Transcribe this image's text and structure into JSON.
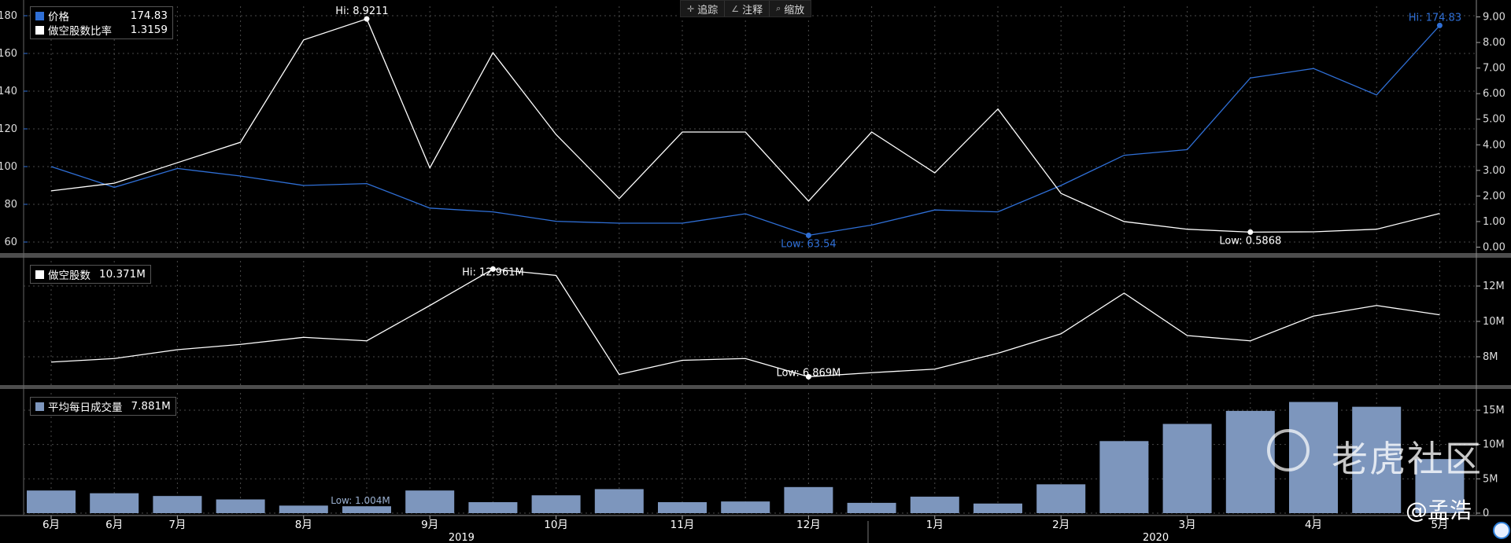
{
  "toolbar": {
    "track": "追踪",
    "annotate": "注释",
    "zoom": "缩放",
    "track_icon": "crosshair-icon",
    "annotate_icon": "pencil-icon",
    "zoom_icon": "magnifier-icon"
  },
  "legends": {
    "price": {
      "label": "价格",
      "value": "174.83",
      "color": "#2f6fd6"
    },
    "ratio": {
      "label": "做空股数比率",
      "value": "1.3159",
      "color": "#ffffff"
    },
    "short": {
      "label": "做空股数",
      "value": "10.371M",
      "color": "#ffffff"
    },
    "volume": {
      "label": "平均每日成交量",
      "value": "7.881M",
      "color": "#7d96bd"
    }
  },
  "watermark": {
    "brand": "老虎社区",
    "user": "@孟浩"
  },
  "chart_data": [
    {
      "type": "line",
      "panel": "price",
      "x": [
        "2019-06-14",
        "2019-06-28",
        "2019-07-15",
        "2019-07-31",
        "2019-08-15",
        "2019-08-30",
        "2019-09-13",
        "2019-09-30",
        "2019-10-15",
        "2019-10-31",
        "2019-11-15",
        "2019-11-29",
        "2019-12-13",
        "2019-12-31",
        "2020-01-15",
        "2020-01-31",
        "2020-02-14",
        "2020-02-28",
        "2020-03-13",
        "2020-03-31",
        "2020-04-15",
        "2020-04-30",
        "2020-05-15"
      ],
      "series": [
        {
          "name": "价格",
          "axis": "left",
          "color": "#2f6fd6",
          "values": [
            100,
            89,
            99,
            95,
            90,
            91,
            78,
            76,
            71,
            70,
            70,
            75,
            63.54,
            69,
            77,
            76,
            90,
            106,
            109,
            147,
            152,
            138,
            174.83
          ]
        },
        {
          "name": "做空股数比率",
          "axis": "right",
          "color": "#ffffff",
          "values": [
            2.2,
            2.5,
            3.3,
            4.1,
            8.1,
            8.9211,
            3.1,
            7.6,
            4.4,
            1.9,
            4.5,
            4.5,
            1.8,
            4.5,
            2.9,
            5.4,
            2.1,
            1.0,
            0.7,
            0.5868,
            0.6,
            0.7,
            1.3159
          ]
        }
      ],
      "ylim_left": [
        55,
        182
      ],
      "ylim_right": [
        -0.1,
        9.3
      ],
      "yticks_left": [
        "60",
        "80",
        "100",
        "120",
        "140",
        "160",
        "180"
      ],
      "yticks_right": [
        "0.00",
        "1.00",
        "2.00",
        "3.00",
        "4.00",
        "5.00",
        "6.00",
        "7.00",
        "8.00",
        "9.00"
      ],
      "annotations": [
        {
          "text": "Hi: 8.9211",
          "series": 1,
          "index": 5
        },
        {
          "text": "Hi: 174.83",
          "series": 0,
          "index": 22
        },
        {
          "text": "Low: 63.54",
          "series": 0,
          "index": 12
        },
        {
          "text": "Low: 0.5868",
          "series": 1,
          "index": 19
        }
      ]
    },
    {
      "type": "line",
      "panel": "short_interest",
      "x": [
        "2019-06-14",
        "2019-06-28",
        "2019-07-15",
        "2019-07-31",
        "2019-08-15",
        "2019-08-30",
        "2019-09-13",
        "2019-09-30",
        "2019-10-15",
        "2019-10-31",
        "2019-11-15",
        "2019-11-29",
        "2019-12-13",
        "2019-12-31",
        "2020-01-15",
        "2020-01-31",
        "2020-02-14",
        "2020-02-28",
        "2020-03-13",
        "2020-03-31",
        "2020-04-15",
        "2020-04-30",
        "2020-05-15"
      ],
      "series": [
        {
          "name": "做空股数",
          "color": "#ffffff",
          "values": [
            7.7,
            7.9,
            8.4,
            8.7,
            9.1,
            8.9,
            10.9,
            12.961,
            12.6,
            7.0,
            7.8,
            7.9,
            6.869,
            7.1,
            7.3,
            8.2,
            9.3,
            11.6,
            9.2,
            8.9,
            10.3,
            10.9,
            10.371
          ]
        }
      ],
      "ylim": [
        6.5,
        13.3
      ],
      "yticks": [
        "8M",
        "10M",
        "12M"
      ],
      "annotations": [
        {
          "text": "Hi: 12.961M",
          "index": 7
        },
        {
          "text": "Low: 6.869M",
          "index": 12
        }
      ]
    },
    {
      "type": "bar",
      "panel": "volume",
      "x": [
        "2019-06-14",
        "2019-06-28",
        "2019-07-15",
        "2019-07-31",
        "2019-08-15",
        "2019-08-30",
        "2019-09-13",
        "2019-09-30",
        "2019-10-15",
        "2019-10-31",
        "2019-11-15",
        "2019-11-29",
        "2019-12-13",
        "2019-12-31",
        "2020-01-15",
        "2020-01-31",
        "2020-02-14",
        "2020-02-28",
        "2020-03-13",
        "2020-03-31",
        "2020-04-15",
        "2020-04-30",
        "2020-05-15"
      ],
      "series": [
        {
          "name": "平均每日成交量",
          "color": "#7d96bd",
          "values": [
            3.3,
            2.9,
            2.5,
            2.0,
            1.1,
            1.004,
            3.3,
            1.6,
            2.6,
            3.5,
            1.6,
            1.7,
            3.8,
            1.5,
            2.4,
            1.4,
            4.2,
            10.5,
            13.0,
            14.9,
            16.2,
            15.5,
            7.881
          ]
        }
      ],
      "ylim": [
        0,
        18
      ],
      "yticks": [
        "0",
        "5M",
        "10M",
        "15M"
      ],
      "annotations": [
        {
          "text": "Low: 1.004M",
          "index": 5
        }
      ]
    }
  ],
  "x_axis": {
    "month_labels": [
      {
        "text": "6月",
        "index": 0
      },
      {
        "text": "6月",
        "index": 1
      },
      {
        "text": "7月",
        "index": 2
      },
      {
        "text": "8月",
        "index": 4
      },
      {
        "text": "9月",
        "index": 6
      },
      {
        "text": "10月",
        "index": 8
      },
      {
        "text": "11月",
        "index": 10
      },
      {
        "text": "12月",
        "index": 12
      },
      {
        "text": "1月",
        "index": 14
      },
      {
        "text": "2月",
        "index": 16
      },
      {
        "text": "3月",
        "index": 18
      },
      {
        "text": "4月",
        "index": 20
      },
      {
        "text": "5月",
        "index": 22
      }
    ],
    "year_labels": [
      {
        "text": "2019",
        "index": 7
      },
      {
        "text": "2020",
        "index": 18
      }
    ]
  }
}
